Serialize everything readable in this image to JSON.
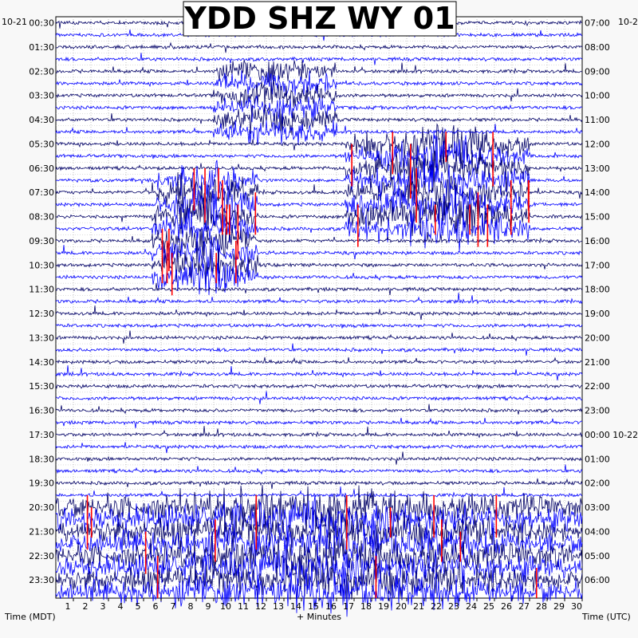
{
  "chart_data": {
    "type": "line",
    "title": "YDD SHZ WY 01",
    "xlabel": "+ Minutes",
    "left_axis_label": "Time (MDT)",
    "right_axis_label": "Time (UTC)",
    "left_date_label": "10-21",
    "right_date_label": "10-2",
    "xlim": [
      0,
      30
    ],
    "x_ticks": [
      "1",
      "2",
      "3",
      "4",
      "5",
      "6",
      "7",
      "8",
      "9",
      "10",
      "11",
      "12",
      "13",
      "14",
      "15",
      "16",
      "17",
      "18",
      "19",
      "20",
      "21",
      "22",
      "23",
      "24",
      "25",
      "26",
      "27",
      "28",
      "29",
      "30"
    ],
    "left_time_labels": [
      "00:30",
      "01:30",
      "02:30",
      "03:30",
      "04:30",
      "05:30",
      "06:30",
      "07:30",
      "08:30",
      "09:30",
      "10:30",
      "11:30",
      "12:30",
      "13:30",
      "14:30",
      "15:30",
      "16:30",
      "17:30",
      "18:30",
      "19:30",
      "20:30",
      "21:30",
      "22:30",
      "23:30"
    ],
    "right_time_labels": [
      "07:00",
      "08:00",
      "09:00",
      "10:00",
      "11:00",
      "12:00",
      "13:00",
      "14:00",
      "15:00",
      "16:00",
      "17:00",
      "18:00",
      "19:00",
      "20:00",
      "21:00",
      "22:00",
      "23:00",
      "00:00 10-22",
      "01:00",
      "02:00",
      "03:00",
      "04:00",
      "05:00",
      "06:00"
    ],
    "trace_rows": 48,
    "trace_colors": [
      "#000066",
      "#0000ff"
    ],
    "clip_color": "#ff0000",
    "grid": true,
    "events": [
      {
        "rows": [
          4,
          9
        ],
        "x_range": [
          9,
          16
        ],
        "amp": 1.6
      },
      {
        "rows": [
          10,
          17
        ],
        "x_range": [
          16.5,
          27
        ],
        "amp": 2.2
      },
      {
        "rows": [
          13,
          21
        ],
        "x_range": [
          5.5,
          11.5
        ],
        "amp": 2.2
      },
      {
        "rows": [
          40,
          47
        ],
        "x_range": [
          0,
          30
        ],
        "amp": 2.2
      }
    ]
  }
}
